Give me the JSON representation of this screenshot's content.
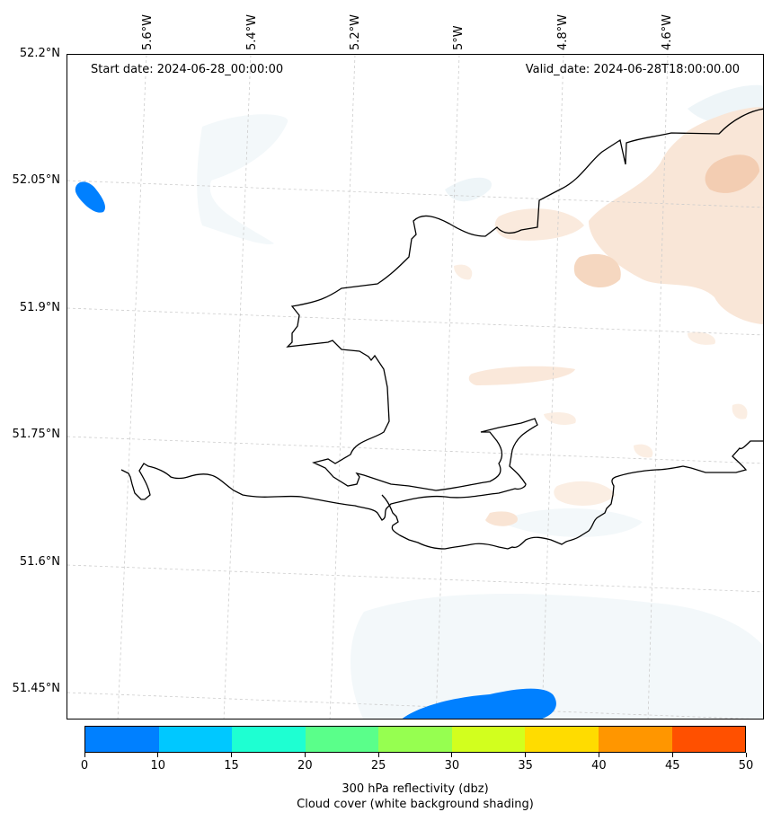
{
  "header": {
    "start_date": "Start date: 2024-06-28_00:00:00",
    "valid_date": "Valid_date: 2024-06-28T18:00:00.00"
  },
  "map": {
    "lat_labels": [
      "52.2°N",
      "52.05°N",
      "51.9°N",
      "51.75°N",
      "51.6°N",
      "51.45°N"
    ],
    "lon_labels": [
      "5.6°W",
      "5.4°W",
      "5.2°W",
      "5°W",
      "4.8°W",
      "4.6°W"
    ],
    "colors": {
      "coastline": "#000000",
      "gridline": "#cccccc",
      "cloud_cover_light": "#f4f8fa",
      "cloud_cover_mid": "#e9f2f6",
      "low_reflectivity": "#0080ff",
      "precip_shade": "#f9e4d4",
      "precip_shade_dark": "#f4cfb5"
    }
  },
  "colorbar": {
    "colors": [
      "#0080ff",
      "#00c8ff",
      "#1effd2",
      "#5aff8a",
      "#96ff50",
      "#d2ff1e",
      "#ffdc00",
      "#ff9600",
      "#ff5000"
    ],
    "ticks": [
      "0",
      "10",
      "15",
      "20",
      "25",
      "30",
      "35",
      "40",
      "45",
      "50"
    ],
    "label_line1": "300 hPa reflectivity (dbz)",
    "label_line2": "Cloud cover (white background shading)"
  }
}
